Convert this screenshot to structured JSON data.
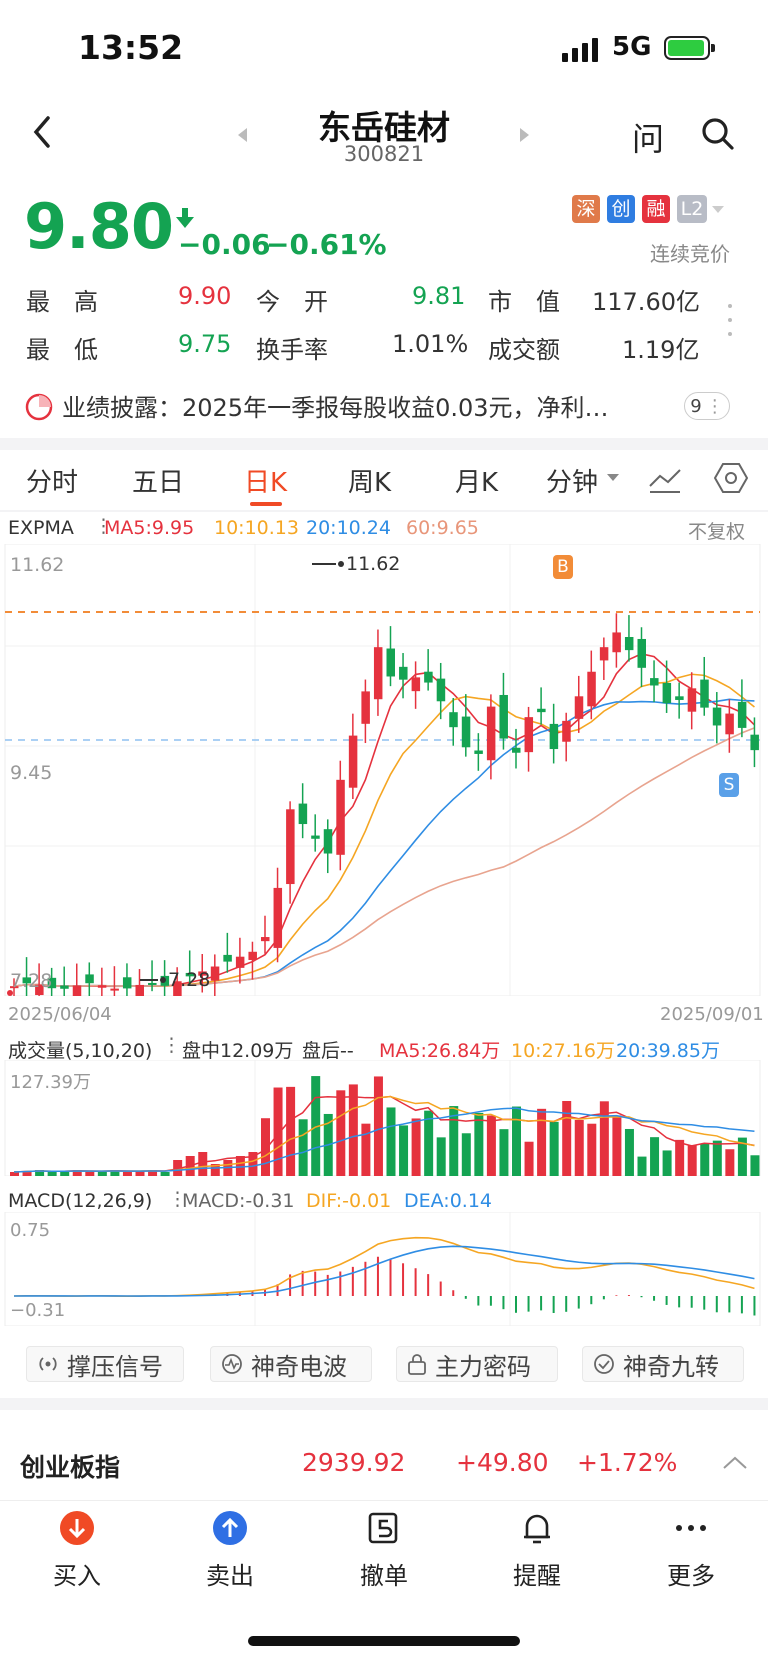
{
  "status": {
    "time": "13:52",
    "network": "5G"
  },
  "header": {
    "title": "东岳硅材",
    "code": "300821",
    "ask_label": "问"
  },
  "quote": {
    "price": "9.80",
    "change": "−0.06",
    "change_pct": "−0.61%",
    "badges": [
      "深",
      "创",
      "融",
      "L2"
    ],
    "trade_status": "连续竞价",
    "rows": [
      {
        "l1": "最　高",
        "v1": "9.90",
        "l2": "今　开",
        "v2": "9.81",
        "l3": "市　值",
        "v3": "117.60亿"
      },
      {
        "l1": "最　低",
        "v1": "9.75",
        "l2": "换手率",
        "v2": "1.01%",
        "l3": "成交额",
        "v3": "1.19亿"
      }
    ]
  },
  "disclosure": {
    "text": "业绩披露：2025年一季报每股收益0.03元，净利…",
    "count": "9"
  },
  "tabs": [
    "分时",
    "五日",
    "日K",
    "周K",
    "月K",
    "分钟"
  ],
  "active_tab": "日K",
  "kline": {
    "indicator": "EXPMA",
    "ma5": "MA5:9.95",
    "ma10": "10:10.13",
    "ma20": "20:10.24",
    "ma60": "60:9.65",
    "adjust": "不复权",
    "y_top": "11.62",
    "y_mid": "9.45",
    "y_low": "7.28",
    "high_mark": "11.62",
    "low_mark": "7.28",
    "date_start": "2025/06/04",
    "date_end": "2025/09/01",
    "buy_mark": "B",
    "sell_mark": "S"
  },
  "volume": {
    "title": "成交量(5,10,20)",
    "intraday": "盘中12.09万",
    "after": "盘后--",
    "ma5": "MA5:26.84万",
    "ma10": "10:27.16万",
    "ma20": "20:39.85万",
    "max_label": "127.39万"
  },
  "macd": {
    "title": "MACD(12,26,9)",
    "macd": "MACD:-0.31",
    "dif": "DIF:-0.01",
    "dea": "DEA:0.14",
    "top_label": "0.75",
    "bottom_label": "−0.31"
  },
  "signals": [
    "撑压信号",
    "神奇电波",
    "主力密码",
    "神奇九转"
  ],
  "index": {
    "name": "创业板指",
    "value": "2939.92",
    "change": "+49.80",
    "change_pct": "+1.72%"
  },
  "bottom_nav": [
    "买入",
    "卖出",
    "撤单",
    "提醒",
    "更多"
  ],
  "colors": {
    "up": "#e5323e",
    "down": "#14a352",
    "accent": "#f04a25"
  }
}
